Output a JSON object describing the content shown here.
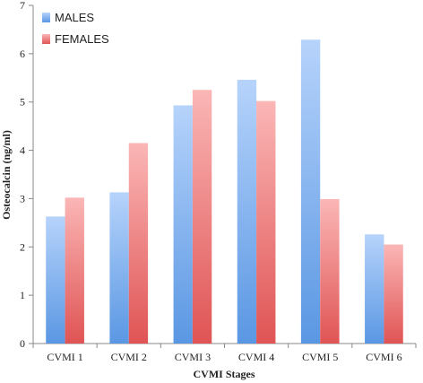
{
  "chart_data": {
    "type": "bar",
    "title": "",
    "xlabel": "CVMI Stages",
    "ylabel": "Osteocalcin (ng/ml)",
    "ylim": [
      0,
      7
    ],
    "yticks": [
      "0",
      "1",
      "2",
      "3",
      "4",
      "5",
      "6",
      "7"
    ],
    "categories": [
      "CVMI 1",
      "CVMI 2",
      "CVMI 3",
      "CVMI 4",
      "CVMI 5",
      "CVMI 6"
    ],
    "series": [
      {
        "name": "MALES",
        "values": [
          2.63,
          3.13,
          4.93,
          5.46,
          6.29,
          2.26
        ],
        "color_light": "#b6d3fb",
        "color_dark": "#5a97e3"
      },
      {
        "name": "FEMALES",
        "values": [
          3.02,
          4.15,
          5.25,
          5.02,
          2.99,
          2.05
        ],
        "color_light": "#fbb6b6",
        "color_dark": "#e05454"
      }
    ],
    "grid": false,
    "legend_position": "top-left"
  }
}
